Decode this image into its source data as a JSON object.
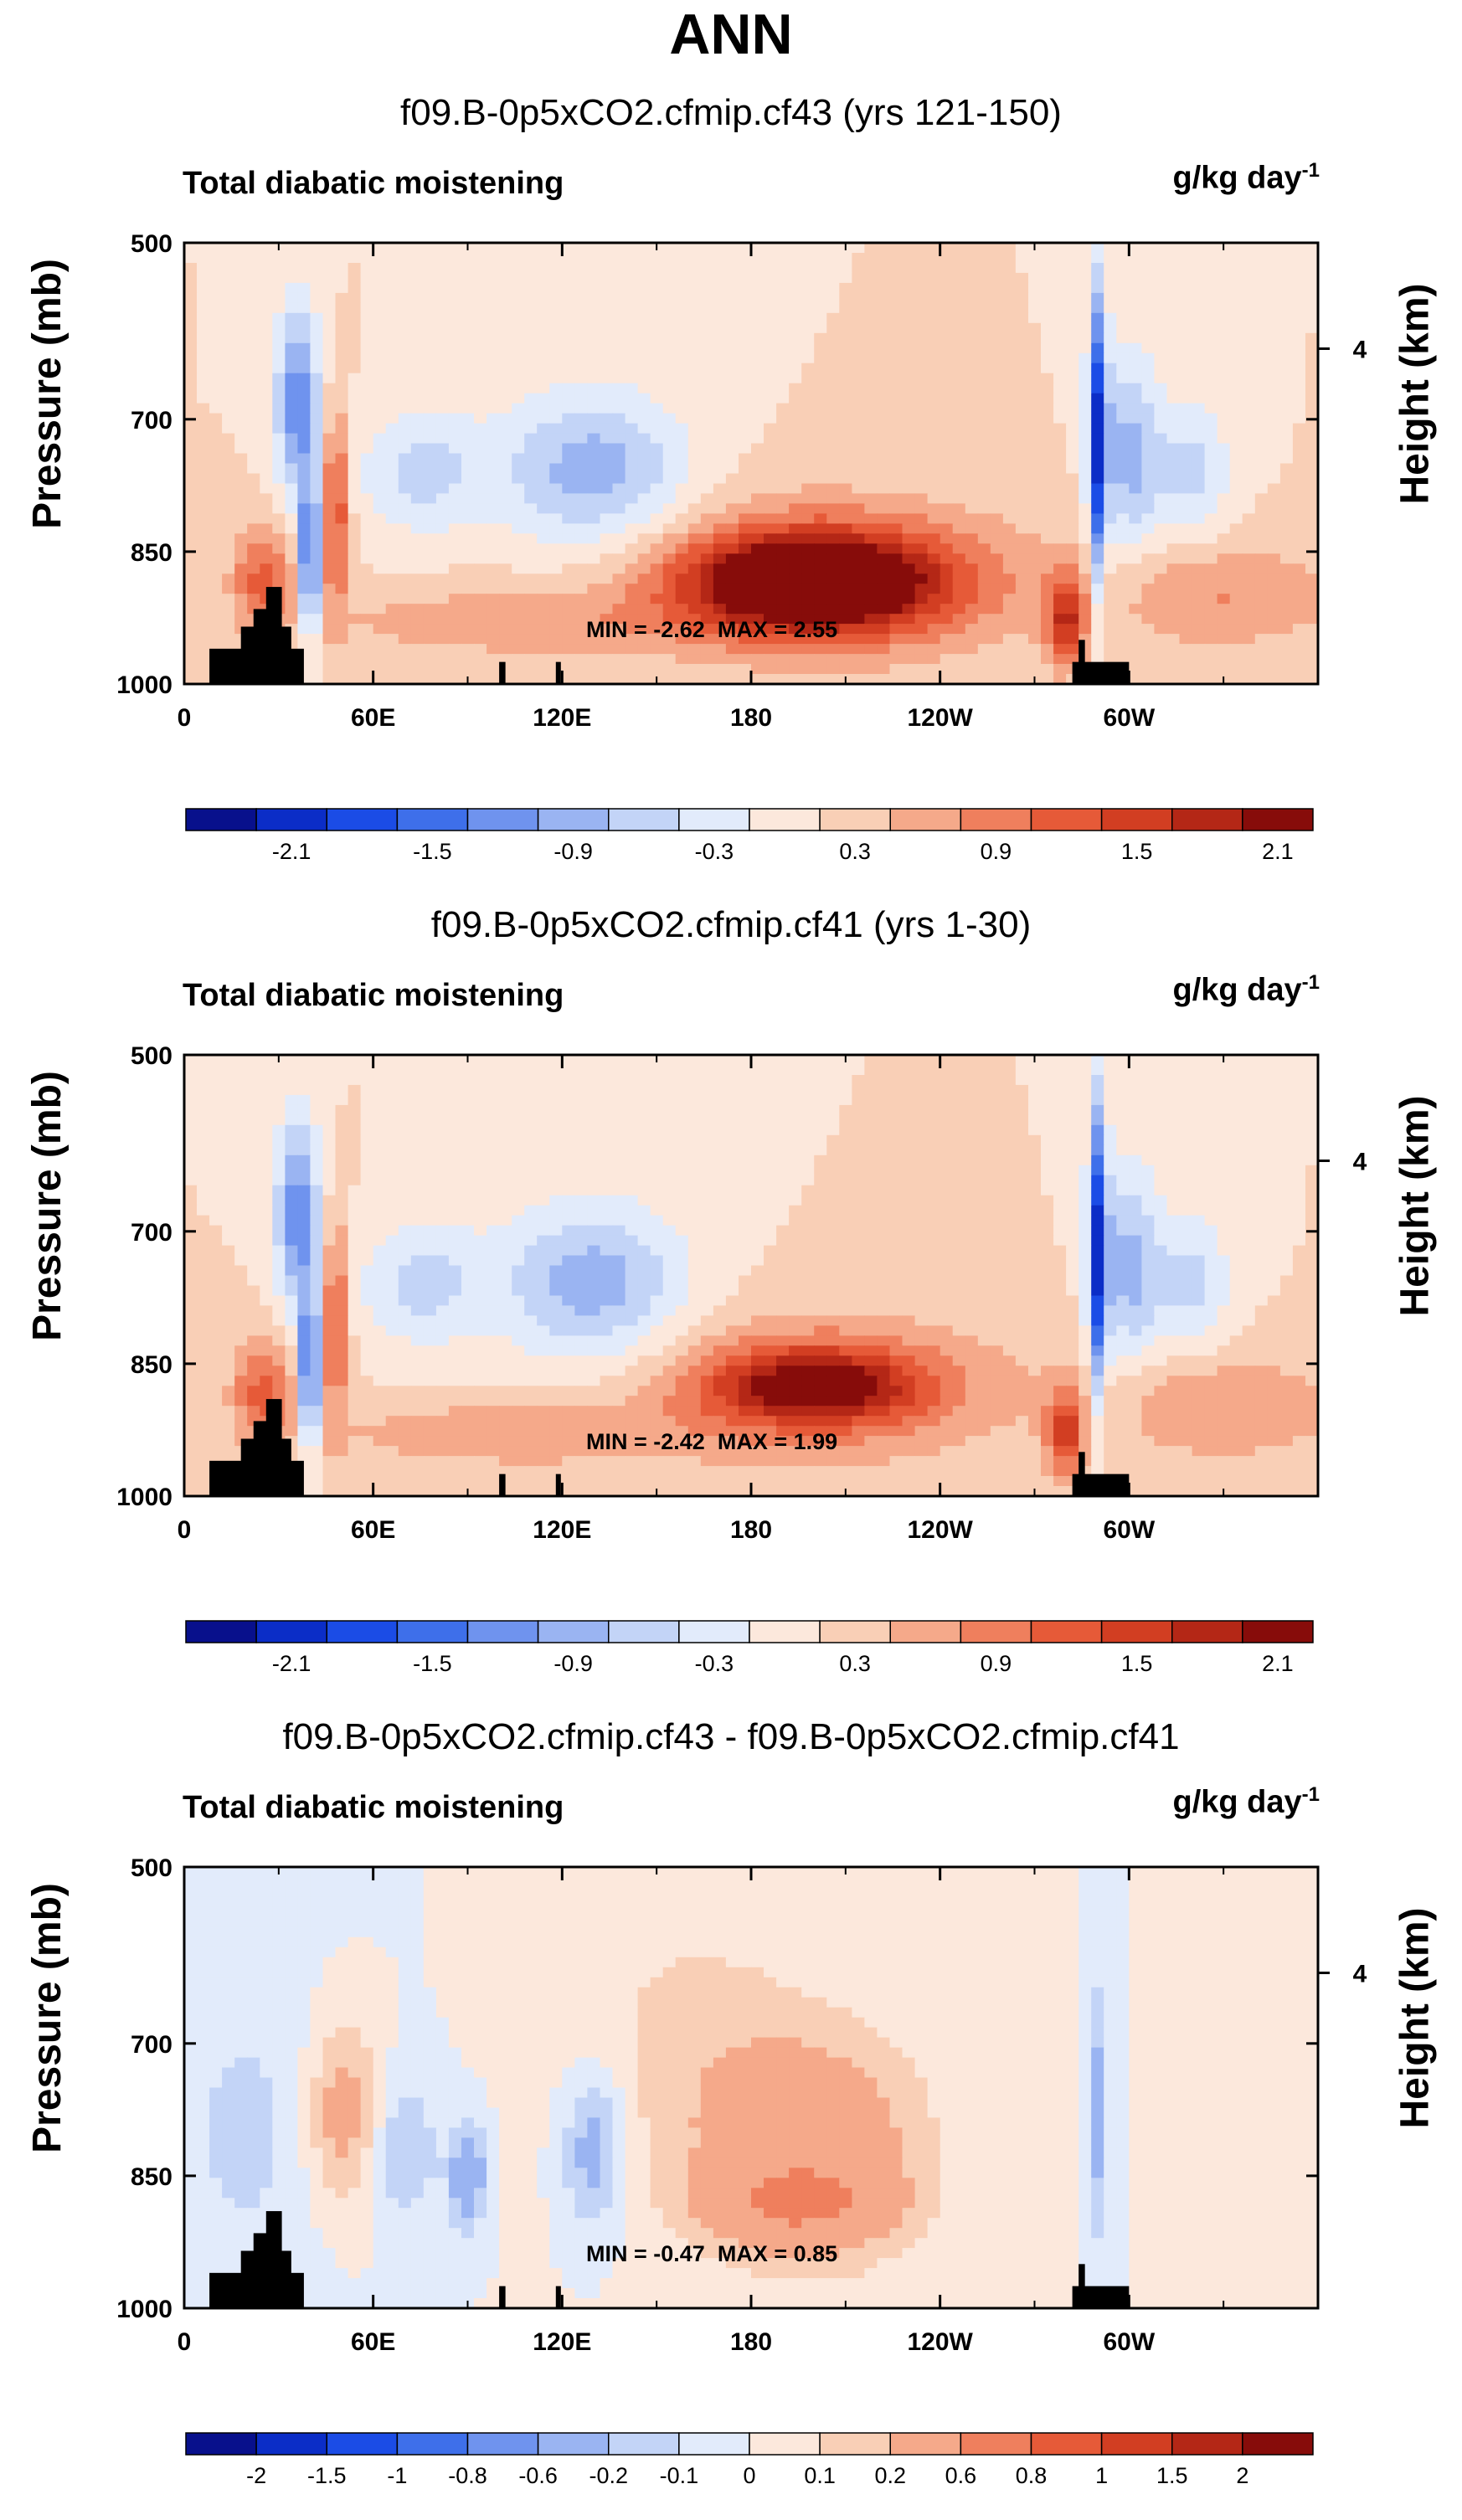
{
  "page_title": "ANN",
  "chart_data": [
    {
      "type": "heatmap",
      "title": "f09.B-0p5xCO2.cfmip.cf43 (yrs 121-150)",
      "variable": "Total diabatic moistening",
      "units": "g/kg day",
      "units_exp": "-1",
      "ylabel": "Pressure (mb)",
      "ylabel_right": "Height (km)",
      "y_ticks": [
        "500",
        "700",
        "850",
        "1000"
      ],
      "y_right_ticks": [
        "4"
      ],
      "x_ticks": [
        "0",
        "60E",
        "120E",
        "180",
        "120W",
        "60W"
      ],
      "min_text": "MIN = -2.62",
      "max_text": "MAX =  2.55",
      "colorbar_labels": [
        "-2.1",
        "-1.5",
        "-0.9",
        "-0.3",
        "0.3",
        "0.9",
        "1.5",
        "2.1"
      ],
      "colorbar_colors": [
        "#08108c",
        "#0b2dc7",
        "#1b4ce6",
        "#3e6fea",
        "#6f93ee",
        "#9ab4f2",
        "#c3d4f7",
        "#e2ebfb",
        "#fce8dc",
        "#f9cfb6",
        "#f5a98a",
        "#ef7f5d",
        "#e65a38",
        "#d23e22",
        "#b42716",
        "#870c0a"
      ],
      "features": [
        {
          "lon": 200,
          "p": 885,
          "wlon": 40,
          "wp": 55,
          "amp": 2.4
        },
        {
          "lon": 205,
          "p": 880,
          "wlon": 65,
          "wp": 95,
          "amp": 0.8
        },
        {
          "lon": 36,
          "p": 680,
          "wlon": 7,
          "wp": 110,
          "amp": -1.4
        },
        {
          "lon": 40,
          "p": 860,
          "wlon": 3,
          "wp": 90,
          "amp": -2.0
        },
        {
          "lon": 48,
          "p": 800,
          "wlon": 4,
          "wp": 110,
          "amp": 1.3
        },
        {
          "lon": 25,
          "p": 880,
          "wlon": 10,
          "wp": 60,
          "amp": 1.0
        },
        {
          "lon": 75,
          "p": 760,
          "wlon": 20,
          "wp": 70,
          "amp": -0.7
        },
        {
          "lon": 130,
          "p": 760,
          "wlon": 30,
          "wp": 90,
          "amp": -1.1
        },
        {
          "lon": 290,
          "p": 720,
          "wlon": 3,
          "wp": 180,
          "amp": -2.0
        },
        {
          "lon": 300,
          "p": 740,
          "wlon": 10,
          "wp": 120,
          "amp": -1.0
        },
        {
          "lon": 320,
          "p": 760,
          "wlon": 12,
          "wp": 80,
          "amp": -0.7
        },
        {
          "lon": 100,
          "p": 930,
          "wlon": 60,
          "wp": 40,
          "amp": 0.5
        },
        {
          "lon": 330,
          "p": 900,
          "wlon": 40,
          "wp": 60,
          "amp": 0.6
        },
        {
          "lon": 280,
          "p": 930,
          "wlon": 6,
          "wp": 50,
          "amp": 1.4
        }
      ],
      "topography": [
        {
          "lon0": 8,
          "lon1": 38,
          "p_top": 960
        },
        {
          "lon0": 18,
          "lon1": 34,
          "p_top": 935
        },
        {
          "lon0": 22,
          "lon1": 30,
          "p_top": 915
        },
        {
          "lon0": 26,
          "lon1": 31,
          "p_top": 890
        },
        {
          "lon0": 100,
          "lon1": 102,
          "p_top": 975
        },
        {
          "lon0": 118,
          "lon1": 119,
          "p_top": 975
        },
        {
          "lon0": 282,
          "lon1": 300,
          "p_top": 975
        },
        {
          "lon0": 284,
          "lon1": 286,
          "p_top": 950
        }
      ]
    },
    {
      "type": "heatmap",
      "title": "f09.B-0p5xCO2.cfmip.cf41 (yrs 1-30)",
      "variable": "Total diabatic moistening",
      "units": "g/kg day",
      "units_exp": "-1",
      "ylabel": "Pressure (mb)",
      "ylabel_right": "Height (km)",
      "y_ticks": [
        "500",
        "700",
        "850",
        "1000"
      ],
      "y_right_ticks": [
        "4"
      ],
      "x_ticks": [
        "0",
        "60E",
        "120E",
        "180",
        "120W",
        "60W"
      ],
      "min_text": "MIN = -2.42",
      "max_text": "MAX =  1.99",
      "colorbar_labels": [
        "-2.1",
        "-1.5",
        "-0.9",
        "-0.3",
        "0.3",
        "0.9",
        "1.5",
        "2.1"
      ],
      "colorbar_colors": [
        "#08108c",
        "#0b2dc7",
        "#1b4ce6",
        "#3e6fea",
        "#6f93ee",
        "#9ab4f2",
        "#c3d4f7",
        "#e2ebfb",
        "#fce8dc",
        "#f9cfb6",
        "#f5a98a",
        "#ef7f5d",
        "#e65a38",
        "#d23e22",
        "#b42716",
        "#870c0a"
      ],
      "features": [
        {
          "lon": 200,
          "p": 875,
          "wlon": 35,
          "wp": 45,
          "amp": 1.7
        },
        {
          "lon": 205,
          "p": 880,
          "wlon": 65,
          "wp": 95,
          "amp": 0.6
        },
        {
          "lon": 36,
          "p": 680,
          "wlon": 7,
          "wp": 110,
          "amp": -1.4
        },
        {
          "lon": 40,
          "p": 860,
          "wlon": 3,
          "wp": 90,
          "amp": -2.0
        },
        {
          "lon": 48,
          "p": 800,
          "wlon": 4,
          "wp": 110,
          "amp": 1.2
        },
        {
          "lon": 25,
          "p": 880,
          "wlon": 10,
          "wp": 60,
          "amp": 1.0
        },
        {
          "lon": 75,
          "p": 760,
          "wlon": 20,
          "wp": 70,
          "amp": -0.7
        },
        {
          "lon": 130,
          "p": 760,
          "wlon": 30,
          "wp": 90,
          "amp": -1.1
        },
        {
          "lon": 290,
          "p": 720,
          "wlon": 3,
          "wp": 180,
          "amp": -2.0
        },
        {
          "lon": 300,
          "p": 740,
          "wlon": 10,
          "wp": 120,
          "amp": -1.0
        },
        {
          "lon": 320,
          "p": 760,
          "wlon": 12,
          "wp": 80,
          "amp": -0.7
        },
        {
          "lon": 100,
          "p": 930,
          "wlon": 60,
          "wp": 40,
          "amp": 0.5
        },
        {
          "lon": 330,
          "p": 900,
          "wlon": 40,
          "wp": 60,
          "amp": 0.6
        },
        {
          "lon": 280,
          "p": 930,
          "wlon": 6,
          "wp": 50,
          "amp": 1.2
        }
      ],
      "topography": [
        {
          "lon0": 8,
          "lon1": 38,
          "p_top": 960
        },
        {
          "lon0": 18,
          "lon1": 34,
          "p_top": 935
        },
        {
          "lon0": 22,
          "lon1": 30,
          "p_top": 915
        },
        {
          "lon0": 26,
          "lon1": 31,
          "p_top": 890
        },
        {
          "lon0": 100,
          "lon1": 102,
          "p_top": 975
        },
        {
          "lon0": 118,
          "lon1": 119,
          "p_top": 975
        },
        {
          "lon0": 282,
          "lon1": 300,
          "p_top": 975
        },
        {
          "lon0": 284,
          "lon1": 286,
          "p_top": 950
        }
      ]
    },
    {
      "type": "heatmap",
      "title": "f09.B-0p5xCO2.cfmip.cf43 - f09.B-0p5xCO2.cfmip.cf41",
      "variable": "Total diabatic moistening",
      "units": "g/kg day",
      "units_exp": "-1",
      "ylabel": "Pressure (mb)",
      "ylabel_right": "Height (km)",
      "y_ticks": [
        "500",
        "700",
        "850",
        "1000"
      ],
      "y_right_ticks": [
        "4"
      ],
      "x_ticks": [
        "0",
        "60E",
        "120E",
        "180",
        "120W",
        "60W"
      ],
      "min_text": "MIN = -0.47",
      "max_text": "MAX =  0.85",
      "colorbar_labels": [
        "-2",
        "-1.5",
        "-1",
        "-0.8",
        "-0.6",
        "-0.2",
        "-0.1",
        "0",
        "0.1",
        "0.2",
        "0.6",
        "0.8",
        "1",
        "1.5",
        "2"
      ],
      "colorbar_colors": [
        "#08108c",
        "#0b2dc7",
        "#1b4ce6",
        "#3e6fea",
        "#6f93ee",
        "#9ab4f2",
        "#c3d4f7",
        "#e2ebfb",
        "#fce8dc",
        "#f9cfb6",
        "#f5a98a",
        "#ef7f5d",
        "#e65a38",
        "#d23e22",
        "#b42716",
        "#870c0a"
      ],
      "features": [
        {
          "lon": 195,
          "p": 880,
          "wlon": 25,
          "wp": 40,
          "amp": 0.5
        },
        {
          "lon": 200,
          "p": 820,
          "wlon": 35,
          "wp": 130,
          "amp": 0.35
        },
        {
          "lon": 50,
          "p": 780,
          "wlon": 12,
          "wp": 110,
          "amp": 0.3
        },
        {
          "lon": 90,
          "p": 850,
          "wlon": 6,
          "wp": 60,
          "amp": -0.35
        },
        {
          "lon": 130,
          "p": 820,
          "wlon": 10,
          "wp": 90,
          "amp": -0.3
        },
        {
          "lon": 70,
          "p": 820,
          "wlon": 10,
          "wp": 80,
          "amp": -0.2
        },
        {
          "lon": 290,
          "p": 780,
          "wlon": 3,
          "wp": 150,
          "amp": -0.25
        },
        {
          "lon": 160,
          "p": 700,
          "wlon": 40,
          "wp": 200,
          "amp": 0.12
        },
        {
          "lon": 20,
          "p": 800,
          "wlon": 30,
          "wp": 200,
          "amp": -0.12
        }
      ],
      "topography": [
        {
          "lon0": 8,
          "lon1": 38,
          "p_top": 960
        },
        {
          "lon0": 18,
          "lon1": 34,
          "p_top": 935
        },
        {
          "lon0": 22,
          "lon1": 30,
          "p_top": 915
        },
        {
          "lon0": 26,
          "lon1": 31,
          "p_top": 890
        },
        {
          "lon0": 100,
          "lon1": 102,
          "p_top": 975
        },
        {
          "lon0": 118,
          "lon1": 119,
          "p_top": 975
        },
        {
          "lon0": 282,
          "lon1": 300,
          "p_top": 975
        },
        {
          "lon0": 284,
          "lon1": 286,
          "p_top": 950
        }
      ]
    }
  ]
}
